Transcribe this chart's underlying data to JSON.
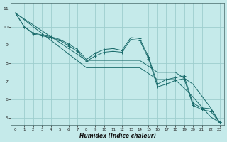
{
  "title": "",
  "xlabel": "Humidex (Indice chaleur)",
  "background_color": "#c5eaea",
  "grid_color": "#9ecece",
  "line_color": "#1a6b6b",
  "xlim": [
    -0.5,
    23.5
  ],
  "ylim": [
    4.6,
    11.3
  ],
  "xticks": [
    0,
    1,
    2,
    3,
    4,
    5,
    6,
    7,
    8,
    9,
    10,
    11,
    12,
    13,
    14,
    15,
    16,
    17,
    18,
    19,
    20,
    21,
    22,
    23
  ],
  "yticks": [
    5,
    6,
    7,
    8,
    9,
    10,
    11
  ],
  "series_wavy1": {
    "x": [
      0,
      1,
      2,
      3,
      4,
      5,
      6,
      7,
      8,
      9,
      10,
      11,
      12,
      13,
      14,
      15,
      16,
      17,
      18,
      19,
      20,
      21,
      22,
      23
    ],
    "y": [
      10.75,
      10.0,
      9.65,
      9.55,
      9.45,
      9.3,
      9.05,
      8.75,
      8.2,
      8.55,
      8.75,
      8.8,
      8.7,
      9.4,
      9.35,
      8.35,
      6.85,
      7.1,
      7.2,
      7.3,
      5.8,
      5.55,
      5.5,
      4.75
    ]
  },
  "series_wavy2": {
    "x": [
      0,
      1,
      2,
      3,
      4,
      5,
      6,
      7,
      8,
      9,
      10,
      11,
      12,
      13,
      14,
      15,
      16,
      17,
      18,
      19,
      20,
      21,
      22,
      23
    ],
    "y": [
      10.75,
      10.0,
      9.6,
      9.5,
      9.4,
      9.25,
      8.95,
      8.65,
      8.1,
      8.4,
      8.6,
      8.65,
      8.6,
      9.3,
      9.25,
      8.25,
      6.7,
      6.85,
      7.05,
      7.15,
      5.7,
      5.45,
      5.35,
      4.75
    ]
  },
  "series_trend1": {
    "x": [
      0,
      1,
      2,
      3,
      4,
      5,
      6,
      7,
      8,
      9,
      10,
      11,
      12,
      13,
      14,
      15,
      16,
      17,
      18,
      19,
      20,
      21,
      22,
      23
    ],
    "y": [
      10.75,
      10.42,
      10.1,
      9.77,
      9.45,
      9.13,
      8.8,
      8.48,
      8.15,
      8.15,
      8.15,
      8.15,
      8.15,
      8.15,
      8.15,
      7.83,
      7.5,
      7.5,
      7.5,
      7.18,
      6.85,
      6.2,
      5.55,
      4.75
    ]
  },
  "series_trend2": {
    "x": [
      0,
      1,
      2,
      3,
      4,
      5,
      6,
      7,
      8,
      9,
      10,
      11,
      12,
      13,
      14,
      15,
      16,
      17,
      18,
      19,
      20,
      21,
      22,
      23
    ],
    "y": [
      10.75,
      10.38,
      10.0,
      9.63,
      9.25,
      8.88,
      8.5,
      8.13,
      7.75,
      7.75,
      7.75,
      7.75,
      7.75,
      7.75,
      7.75,
      7.43,
      7.1,
      7.1,
      7.1,
      6.63,
      6.15,
      5.6,
      5.05,
      4.75
    ]
  }
}
